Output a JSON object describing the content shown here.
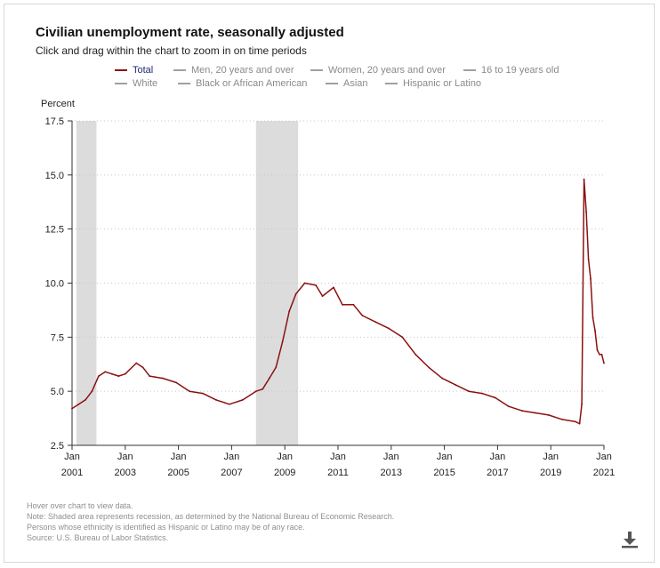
{
  "header": {
    "title": "Civilian unemployment rate, seasonally adjusted",
    "subtitle": "Click and drag within the chart to zoom in on time periods"
  },
  "legend": [
    {
      "label": "Total",
      "active": true
    },
    {
      "label": "Men, 20 years and over",
      "active": false
    },
    {
      "label": "Women, 20 years and over",
      "active": false
    },
    {
      "label": "16 to 19 years old",
      "active": false
    },
    {
      "label": "White",
      "active": false
    },
    {
      "label": "Black or African American",
      "active": false
    },
    {
      "label": "Asian",
      "active": false
    },
    {
      "label": "Hispanic or Latino",
      "active": false
    }
  ],
  "colors": {
    "series": "#8b1111",
    "recession": "#dcdcdc",
    "grid": "#c8c8c8",
    "axis": "#333333"
  },
  "footnotes": [
    "Hover over chart to view data.",
    "Note: Shaded area represents recession, as determined by the National Bureau of Economic Research.",
    "Persons whose ethnicity is identified as Hispanic or Latino may be of any race.",
    "Source: U.S. Bureau of Labor Statistics."
  ],
  "download_icon": "download-icon",
  "chart_data": {
    "type": "line",
    "title": "Civilian unemployment rate, seasonally adjusted",
    "ylabel": "Percent",
    "xlabel": "",
    "ylim": [
      2.5,
      17.5
    ],
    "xlim": [
      "2001-01",
      "2021-01"
    ],
    "yticks": [
      "2.5",
      "5.0",
      "7.5",
      "10.0",
      "12.5",
      "15.0",
      "17.5"
    ],
    "xticks": [
      {
        "month": "Jan",
        "year": "2001",
        "date": "2001-01"
      },
      {
        "month": "Jan",
        "year": "2003",
        "date": "2003-01"
      },
      {
        "month": "Jan",
        "year": "2005",
        "date": "2005-01"
      },
      {
        "month": "Jan",
        "year": "2007",
        "date": "2007-01"
      },
      {
        "month": "Jan",
        "year": "2009",
        "date": "2009-01"
      },
      {
        "month": "Jan",
        "year": "2011",
        "date": "2011-01"
      },
      {
        "month": "Jan",
        "year": "2013",
        "date": "2013-01"
      },
      {
        "month": "Jan",
        "year": "2015",
        "date": "2015-01"
      },
      {
        "month": "Jan",
        "year": "2017",
        "date": "2017-01"
      },
      {
        "month": "Jan",
        "year": "2019",
        "date": "2019-01"
      },
      {
        "month": "Jan",
        "year": "2021",
        "date": "2021-01"
      }
    ],
    "grid": true,
    "legend_position": "top",
    "recessions": [
      {
        "start": "2001-03",
        "end": "2001-11"
      },
      {
        "start": "2007-12",
        "end": "2009-06"
      }
    ],
    "series": [
      {
        "name": "Total",
        "points": [
          [
            "2001-01",
            4.2
          ],
          [
            "2001-04",
            4.4
          ],
          [
            "2001-07",
            4.6
          ],
          [
            "2001-10",
            5.0
          ],
          [
            "2002-01",
            5.7
          ],
          [
            "2002-04",
            5.9
          ],
          [
            "2002-07",
            5.8
          ],
          [
            "2002-10",
            5.7
          ],
          [
            "2003-01",
            5.8
          ],
          [
            "2003-06",
            6.3
          ],
          [
            "2003-09",
            6.1
          ],
          [
            "2003-12",
            5.7
          ],
          [
            "2004-06",
            5.6
          ],
          [
            "2004-12",
            5.4
          ],
          [
            "2005-06",
            5.0
          ],
          [
            "2005-12",
            4.9
          ],
          [
            "2006-06",
            4.6
          ],
          [
            "2006-12",
            4.4
          ],
          [
            "2007-06",
            4.6
          ],
          [
            "2007-12",
            5.0
          ],
          [
            "2008-03",
            5.1
          ],
          [
            "2008-06",
            5.6
          ],
          [
            "2008-09",
            6.1
          ],
          [
            "2008-12",
            7.3
          ],
          [
            "2009-03",
            8.7
          ],
          [
            "2009-06",
            9.5
          ],
          [
            "2009-10",
            10.0
          ],
          [
            "2010-03",
            9.9
          ],
          [
            "2010-06",
            9.4
          ],
          [
            "2010-11",
            9.8
          ],
          [
            "2011-03",
            9.0
          ],
          [
            "2011-08",
            9.0
          ],
          [
            "2011-12",
            8.5
          ],
          [
            "2012-06",
            8.2
          ],
          [
            "2012-12",
            7.9
          ],
          [
            "2013-06",
            7.5
          ],
          [
            "2013-12",
            6.7
          ],
          [
            "2014-06",
            6.1
          ],
          [
            "2014-12",
            5.6
          ],
          [
            "2015-06",
            5.3
          ],
          [
            "2015-12",
            5.0
          ],
          [
            "2016-06",
            4.9
          ],
          [
            "2016-12",
            4.7
          ],
          [
            "2017-06",
            4.3
          ],
          [
            "2017-12",
            4.1
          ],
          [
            "2018-06",
            4.0
          ],
          [
            "2018-12",
            3.9
          ],
          [
            "2019-06",
            3.7
          ],
          [
            "2019-12",
            3.6
          ],
          [
            "2020-02",
            3.5
          ],
          [
            "2020-03",
            4.4
          ],
          [
            "2020-04",
            14.8
          ],
          [
            "2020-05",
            13.3
          ],
          [
            "2020-06",
            11.1
          ],
          [
            "2020-07",
            10.2
          ],
          [
            "2020-08",
            8.4
          ],
          [
            "2020-09",
            7.8
          ],
          [
            "2020-10",
            6.9
          ],
          [
            "2020-11",
            6.7
          ],
          [
            "2020-12",
            6.7
          ],
          [
            "2021-01",
            6.3
          ]
        ]
      }
    ]
  }
}
